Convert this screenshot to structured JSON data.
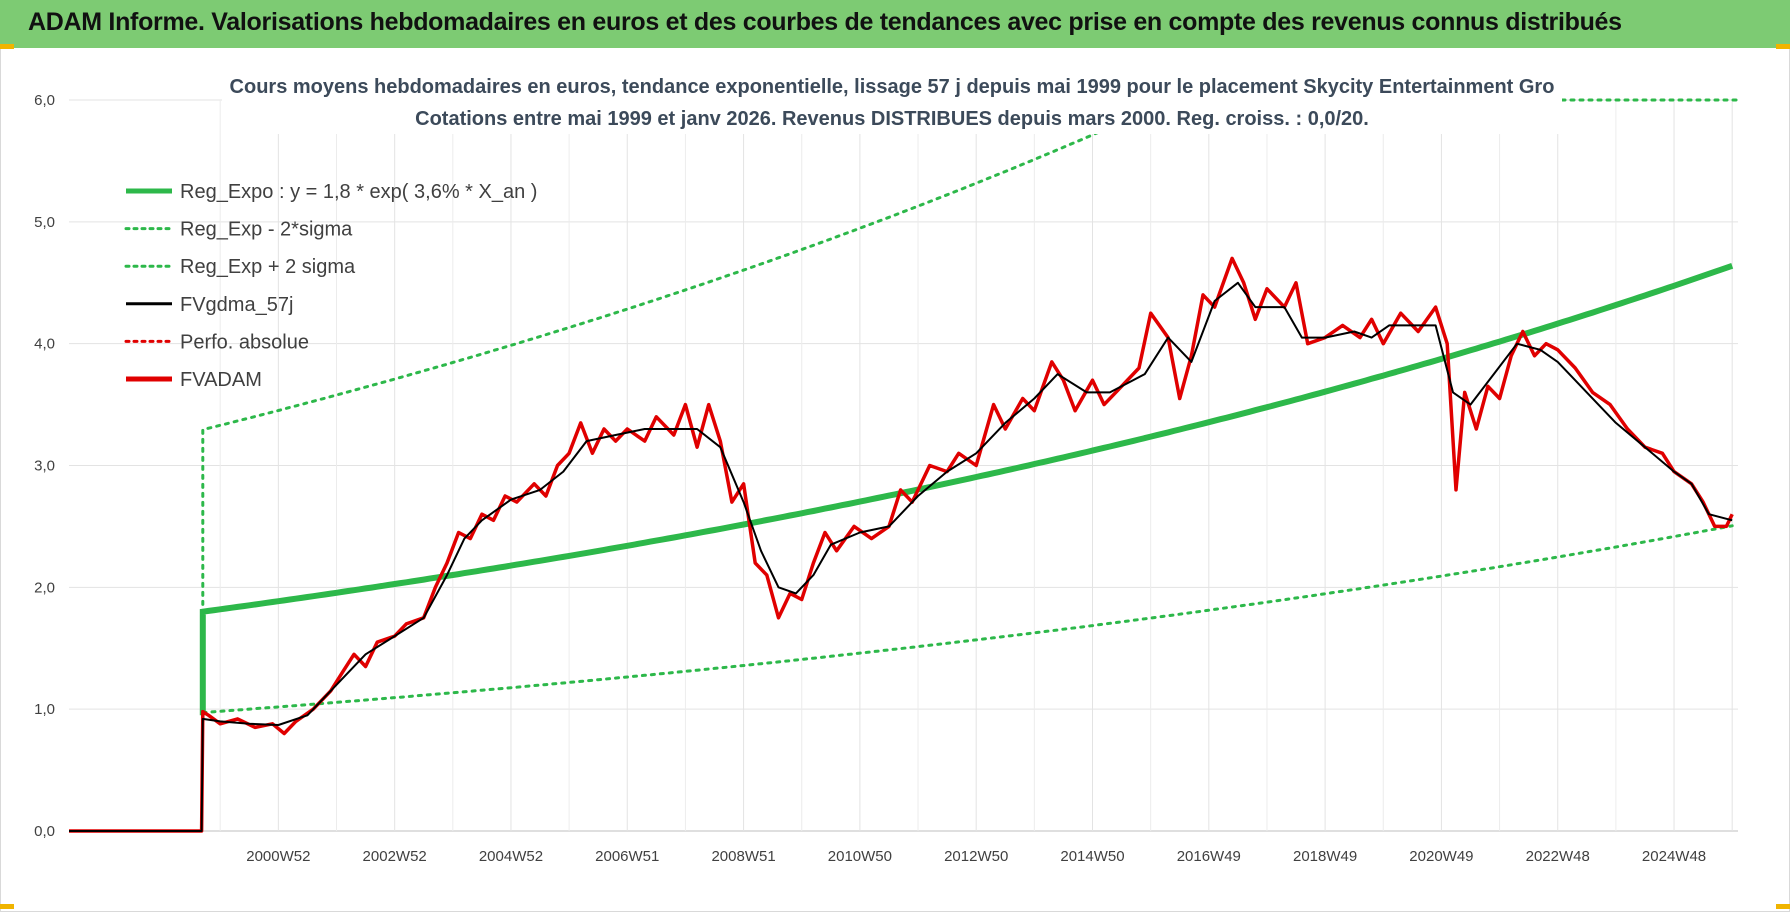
{
  "header": {
    "title": "ADAM Informe. Valorisations hebdomadaires en euros et des courbes de tendances avec prise en compte des revenus connus distribués"
  },
  "chart_data": {
    "type": "line",
    "title": "Cours moyens hebdomadaires en euros, tendance exponentielle, lissage 57 j depuis mai 1999 pour le placement Skycity Entertainment Gro",
    "subtitle": "Cotations entre mai 1999 et janv 2026. Revenus DISTRIBUES depuis mars 2000. Reg. croiss. : 0,0/20.",
    "xlabel": "",
    "ylabel": "",
    "x_range": [
      1997.4,
      2026.1
    ],
    "ylim": [
      0,
      6
    ],
    "y_ticks": [
      "0,0",
      "1,0",
      "2,0",
      "3,0",
      "4,0",
      "5,0",
      "6,0"
    ],
    "x_ticks": [
      {
        "label": "2000W52",
        "x": 2001.0
      },
      {
        "label": "2002W52",
        "x": 2003.0
      },
      {
        "label": "2004W52",
        "x": 2005.0
      },
      {
        "label": "2006W51",
        "x": 2007.0
      },
      {
        "label": "2008W51",
        "x": 2009.0
      },
      {
        "label": "2010W50",
        "x": 2011.0
      },
      {
        "label": "2012W50",
        "x": 2013.0
      },
      {
        "label": "2014W50",
        "x": 2015.0
      },
      {
        "label": "2016W49",
        "x": 2017.0
      },
      {
        "label": "2018W49",
        "x": 2019.0
      },
      {
        "label": "2020W49",
        "x": 2021.0
      },
      {
        "label": "2022W48",
        "x": 2023.0
      },
      {
        "label": "2024W48",
        "x": 2025.0
      }
    ],
    "grid": true,
    "legend_position": "top-left",
    "regression": {
      "a": 1.8,
      "rate": 0.036,
      "start": 1999.7,
      "end": 2026.0,
      "lower_factor": 0.54,
      "upper_factor": 1.83
    },
    "series": [
      {
        "name": "Reg_Expo : y = 1,8 * exp( 3,6% *  X_an )",
        "color": "#2db84a",
        "style": "solid-thick"
      },
      {
        "name": "Reg_Exp - 2*sigma",
        "color": "#2db84a",
        "style": "dotted"
      },
      {
        "name": "Reg_Exp + 2 sigma",
        "color": "#2db84a",
        "style": "dotted"
      },
      {
        "name": "FVgdma_57j",
        "color": "#000000",
        "style": "solid",
        "points": [
          [
            1997.4,
            0
          ],
          [
            1999.68,
            0
          ],
          [
            1999.7,
            0.92
          ],
          [
            2000.0,
            0.9
          ],
          [
            2000.5,
            0.88
          ],
          [
            2001.0,
            0.87
          ],
          [
            2001.5,
            0.95
          ],
          [
            2002.0,
            1.2
          ],
          [
            2002.5,
            1.45
          ],
          [
            2003.0,
            1.6
          ],
          [
            2003.5,
            1.75
          ],
          [
            2003.9,
            2.1
          ],
          [
            2004.2,
            2.4
          ],
          [
            2004.5,
            2.55
          ],
          [
            2005.0,
            2.72
          ],
          [
            2005.5,
            2.8
          ],
          [
            2005.9,
            2.95
          ],
          [
            2006.3,
            3.2
          ],
          [
            2006.8,
            3.25
          ],
          [
            2007.3,
            3.3
          ],
          [
            2007.8,
            3.3
          ],
          [
            2008.2,
            3.3
          ],
          [
            2008.6,
            3.15
          ],
          [
            2009.0,
            2.7
          ],
          [
            2009.3,
            2.3
          ],
          [
            2009.6,
            2.0
          ],
          [
            2009.9,
            1.95
          ],
          [
            2010.2,
            2.1
          ],
          [
            2010.5,
            2.35
          ],
          [
            2011.0,
            2.45
          ],
          [
            2011.5,
            2.5
          ],
          [
            2012.0,
            2.75
          ],
          [
            2012.5,
            2.95
          ],
          [
            2013.0,
            3.1
          ],
          [
            2013.5,
            3.35
          ],
          [
            2014.0,
            3.55
          ],
          [
            2014.4,
            3.75
          ],
          [
            2014.9,
            3.6
          ],
          [
            2015.3,
            3.6
          ],
          [
            2015.9,
            3.75
          ],
          [
            2016.3,
            4.05
          ],
          [
            2016.7,
            3.85
          ],
          [
            2017.1,
            4.35
          ],
          [
            2017.5,
            4.5
          ],
          [
            2017.8,
            4.3
          ],
          [
            2018.3,
            4.3
          ],
          [
            2018.6,
            4.05
          ],
          [
            2019.0,
            4.05
          ],
          [
            2019.5,
            4.1
          ],
          [
            2019.8,
            4.05
          ],
          [
            2020.1,
            4.15
          ],
          [
            2020.5,
            4.15
          ],
          [
            2020.9,
            4.15
          ],
          [
            2021.2,
            3.6
          ],
          [
            2021.5,
            3.5
          ],
          [
            2021.9,
            3.75
          ],
          [
            2022.3,
            4.0
          ],
          [
            2022.7,
            3.95
          ],
          [
            2023.0,
            3.85
          ],
          [
            2023.5,
            3.6
          ],
          [
            2024.0,
            3.35
          ],
          [
            2024.5,
            3.15
          ],
          [
            2025.0,
            2.95
          ],
          [
            2025.3,
            2.85
          ],
          [
            2025.6,
            2.6
          ],
          [
            2026.0,
            2.55
          ]
        ]
      },
      {
        "name": "Perfo. absolue",
        "color": "#e00000",
        "style": "dotted"
      },
      {
        "name": "FVADAM",
        "color": "#e00000",
        "style": "solid-thick",
        "points": [
          [
            1997.4,
            0
          ],
          [
            1999.68,
            0
          ],
          [
            1999.7,
            0.98
          ],
          [
            1999.8,
            0.95
          ],
          [
            2000.0,
            0.88
          ],
          [
            2000.3,
            0.92
          ],
          [
            2000.6,
            0.85
          ],
          [
            2000.9,
            0.88
          ],
          [
            2001.1,
            0.8
          ],
          [
            2001.3,
            0.9
          ],
          [
            2001.6,
            1.0
          ],
          [
            2001.9,
            1.15
          ],
          [
            2002.1,
            1.3
          ],
          [
            2002.3,
            1.45
          ],
          [
            2002.5,
            1.35
          ],
          [
            2002.7,
            1.55
          ],
          [
            2003.0,
            1.6
          ],
          [
            2003.2,
            1.7
          ],
          [
            2003.5,
            1.75
          ],
          [
            2003.7,
            2.0
          ],
          [
            2003.9,
            2.2
          ],
          [
            2004.1,
            2.45
          ],
          [
            2004.3,
            2.4
          ],
          [
            2004.5,
            2.6
          ],
          [
            2004.7,
            2.55
          ],
          [
            2004.9,
            2.75
          ],
          [
            2005.1,
            2.7
          ],
          [
            2005.4,
            2.85
          ],
          [
            2005.6,
            2.75
          ],
          [
            2005.8,
            3.0
          ],
          [
            2006.0,
            3.1
          ],
          [
            2006.2,
            3.35
          ],
          [
            2006.4,
            3.1
          ],
          [
            2006.6,
            3.3
          ],
          [
            2006.8,
            3.2
          ],
          [
            2007.0,
            3.3
          ],
          [
            2007.3,
            3.2
          ],
          [
            2007.5,
            3.4
          ],
          [
            2007.8,
            3.25
          ],
          [
            2008.0,
            3.5
          ],
          [
            2008.2,
            3.15
          ],
          [
            2008.4,
            3.5
          ],
          [
            2008.6,
            3.2
          ],
          [
            2008.8,
            2.7
          ],
          [
            2009.0,
            2.85
          ],
          [
            2009.2,
            2.2
          ],
          [
            2009.4,
            2.1
          ],
          [
            2009.6,
            1.75
          ],
          [
            2009.8,
            1.95
          ],
          [
            2010.0,
            1.9
          ],
          [
            2010.2,
            2.2
          ],
          [
            2010.4,
            2.45
          ],
          [
            2010.6,
            2.3
          ],
          [
            2010.9,
            2.5
          ],
          [
            2011.2,
            2.4
          ],
          [
            2011.5,
            2.5
          ],
          [
            2011.7,
            2.8
          ],
          [
            2011.9,
            2.7
          ],
          [
            2012.2,
            3.0
          ],
          [
            2012.5,
            2.95
          ],
          [
            2012.7,
            3.1
          ],
          [
            2013.0,
            3.0
          ],
          [
            2013.3,
            3.5
          ],
          [
            2013.5,
            3.3
          ],
          [
            2013.8,
            3.55
          ],
          [
            2014.0,
            3.45
          ],
          [
            2014.3,
            3.85
          ],
          [
            2014.5,
            3.7
          ],
          [
            2014.7,
            3.45
          ],
          [
            2015.0,
            3.7
          ],
          [
            2015.2,
            3.5
          ],
          [
            2015.5,
            3.65
          ],
          [
            2015.8,
            3.8
          ],
          [
            2016.0,
            4.25
          ],
          [
            2016.3,
            4.05
          ],
          [
            2016.5,
            3.55
          ],
          [
            2016.7,
            3.9
          ],
          [
            2016.9,
            4.4
          ],
          [
            2017.1,
            4.3
          ],
          [
            2017.4,
            4.7
          ],
          [
            2017.6,
            4.5
          ],
          [
            2017.8,
            4.2
          ],
          [
            2018.0,
            4.45
          ],
          [
            2018.3,
            4.3
          ],
          [
            2018.5,
            4.5
          ],
          [
            2018.7,
            4.0
          ],
          [
            2019.0,
            4.05
          ],
          [
            2019.3,
            4.15
          ],
          [
            2019.6,
            4.05
          ],
          [
            2019.8,
            4.2
          ],
          [
            2020.0,
            4.0
          ],
          [
            2020.3,
            4.25
          ],
          [
            2020.6,
            4.1
          ],
          [
            2020.9,
            4.3
          ],
          [
            2021.1,
            4.0
          ],
          [
            2021.25,
            2.8
          ],
          [
            2021.4,
            3.6
          ],
          [
            2021.6,
            3.3
          ],
          [
            2021.8,
            3.65
          ],
          [
            2022.0,
            3.55
          ],
          [
            2022.2,
            3.9
          ],
          [
            2022.4,
            4.1
          ],
          [
            2022.6,
            3.9
          ],
          [
            2022.8,
            4.0
          ],
          [
            2023.0,
            3.95
          ],
          [
            2023.3,
            3.8
          ],
          [
            2023.6,
            3.6
          ],
          [
            2023.9,
            3.5
          ],
          [
            2024.2,
            3.3
          ],
          [
            2024.5,
            3.15
          ],
          [
            2024.8,
            3.1
          ],
          [
            2025.0,
            2.95
          ],
          [
            2025.3,
            2.85
          ],
          [
            2025.5,
            2.7
          ],
          [
            2025.7,
            2.5
          ],
          [
            2025.9,
            2.5
          ],
          [
            2026.0,
            2.6
          ]
        ]
      }
    ]
  }
}
